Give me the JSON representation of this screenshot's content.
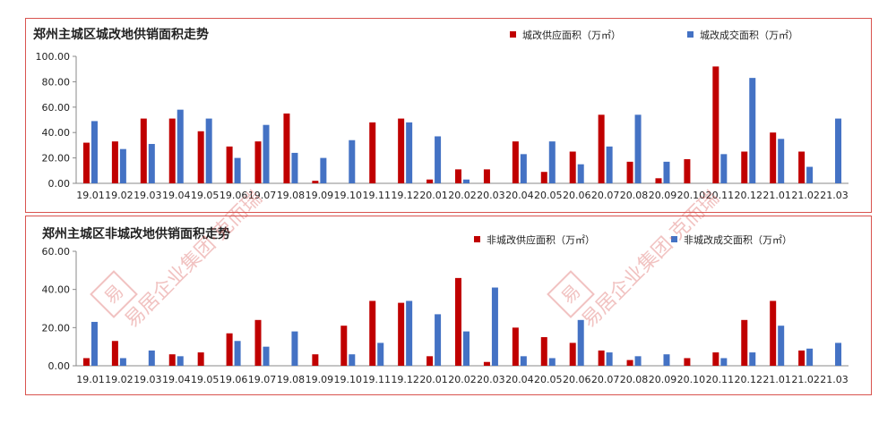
{
  "watermark": {
    "logo_char": "易",
    "text": "易居企业集团·克而瑞"
  },
  "legend_colors": {
    "supply": "#c00000",
    "deal": "#4472c4"
  },
  "chart_data": [
    {
      "type": "bar",
      "title": "郑州主城区城改地供销面积走势",
      "categories": [
        "19.01",
        "19.02",
        "19.03",
        "19.04",
        "19.05",
        "19.06",
        "19.07",
        "19.08",
        "19.09",
        "19.10",
        "19.11",
        "19.12",
        "20.01",
        "20.02",
        "20.03",
        "20.04",
        "20.05",
        "20.06",
        "20.07",
        "20.08",
        "20.09",
        "20.10",
        "20.11",
        "20.12",
        "21.01",
        "21.02",
        "21.03"
      ],
      "ylim": [
        0,
        100
      ],
      "yticks": [
        "0.00",
        "20.00",
        "40.00",
        "60.00",
        "80.00",
        "100.00"
      ],
      "grid": false,
      "legend": "top-right",
      "series": [
        {
          "name": "城改供应面积（万㎡）",
          "color": "#c00000",
          "values": [
            32,
            33,
            51,
            51,
            41,
            29,
            33,
            55,
            2,
            0,
            48,
            51,
            3,
            11,
            11,
            33,
            9,
            25,
            54,
            17,
            4,
            19,
            92,
            25,
            40,
            25,
            0
          ]
        },
        {
          "name": "城改成交面积（万㎡）",
          "color": "#4472c4",
          "values": [
            49,
            27,
            31,
            58,
            51,
            20,
            46,
            24,
            20,
            34,
            0,
            48,
            37,
            3,
            0,
            23,
            33,
            15,
            29,
            54,
            17,
            0,
            23,
            83,
            35,
            13,
            51
          ]
        }
      ]
    },
    {
      "type": "bar",
      "title": "郑州主城区非城改地供销面积走势",
      "categories": [
        "19.01",
        "19.02",
        "19.03",
        "19.04",
        "19.05",
        "19.06",
        "19.07",
        "19.08",
        "19.09",
        "19.10",
        "19.11",
        "19.12",
        "20.01",
        "20.02",
        "20.03",
        "20.04",
        "20.05",
        "20.06",
        "20.07",
        "20.08",
        "20.09",
        "20.10",
        "20.11",
        "20.12",
        "21.01",
        "21.02",
        "21.03"
      ],
      "ylim": [
        0,
        60
      ],
      "yticks": [
        "0.00",
        "20.00",
        "40.00",
        "60.00"
      ],
      "grid": false,
      "legend": "top-right",
      "series": [
        {
          "name": "非城改供应面积（万㎡）",
          "color": "#c00000",
          "values": [
            4,
            13,
            0,
            6,
            7,
            17,
            24,
            0,
            6,
            21,
            34,
            33,
            5,
            46,
            2,
            20,
            15,
            12,
            8,
            3,
            0,
            4,
            7,
            24,
            34,
            8,
            0
          ]
        },
        {
          "name": "非城改成交面积（万㎡）",
          "color": "#4472c4",
          "values": [
            23,
            4,
            8,
            5,
            0,
            13,
            10,
            18,
            0,
            6,
            12,
            34,
            27,
            18,
            41,
            5,
            4,
            24,
            7,
            5,
            6,
            0,
            4,
            7,
            21,
            9,
            12
          ]
        }
      ]
    }
  ]
}
